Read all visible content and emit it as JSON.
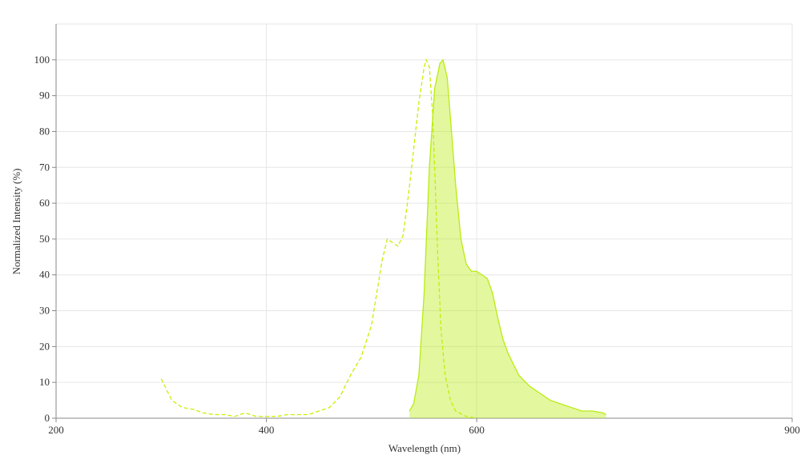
{
  "chart_data": {
    "type": "line",
    "x_label": "Wavelength (nm)",
    "y_label": "Normalized Intensity (%)",
    "xlim": [
      200,
      900
    ],
    "xticks": [
      200,
      400,
      600,
      900
    ],
    "ylim": [
      0,
      110
    ],
    "yticks": [
      0,
      10,
      20,
      30,
      40,
      50,
      60,
      70,
      80,
      90,
      100
    ],
    "grid": true,
    "series": [
      {
        "color": "#c8f000",
        "dashed": true,
        "fill": false,
        "x": [
          300,
          310,
          320,
          330,
          340,
          350,
          360,
          370,
          380,
          390,
          400,
          410,
          420,
          440,
          450,
          460,
          470,
          480,
          490,
          500,
          510,
          515,
          520,
          525,
          530,
          535,
          540,
          545,
          550,
          552,
          555,
          558,
          560,
          563,
          566,
          570,
          575,
          580,
          590,
          600
        ],
        "values": [
          11,
          5,
          3,
          2.5,
          1.5,
          1,
          1,
          0.5,
          1.5,
          0.5,
          0.5,
          0.5,
          1,
          1,
          2,
          3,
          6,
          12,
          17,
          26,
          44,
          50,
          49,
          48,
          51,
          62,
          75,
          88,
          98,
          100,
          98,
          85,
          70,
          45,
          25,
          12,
          5,
          2,
          0.5,
          0
        ]
      },
      {
        "color": "#b8ec10",
        "dashed": false,
        "fill": true,
        "x": [
          536,
          540,
          545,
          550,
          555,
          560,
          565,
          568,
          572,
          576,
          580,
          585,
          590,
          595,
          600,
          605,
          610,
          615,
          620,
          625,
          630,
          635,
          640,
          650,
          660,
          670,
          680,
          690,
          700,
          710,
          720,
          723
        ],
        "values": [
          2,
          4,
          12,
          35,
          70,
          92,
          99,
          100,
          95,
          80,
          65,
          50,
          43,
          41,
          41,
          40,
          39,
          35,
          28,
          22,
          18,
          15,
          12,
          9,
          7,
          5,
          4,
          3,
          2,
          2,
          1.5,
          1
        ]
      }
    ]
  }
}
